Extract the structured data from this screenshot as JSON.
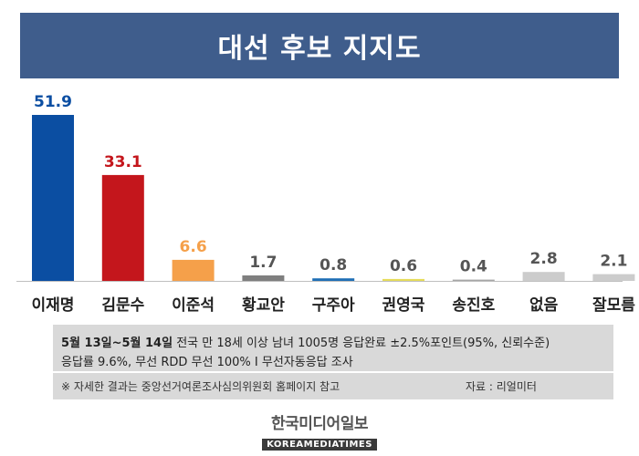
{
  "chart_data": {
    "type": "bar",
    "title": "대선 후보 지지도",
    "categories": [
      "이재명",
      "김문수",
      "이준석",
      "황교안",
      "구주아",
      "권영국",
      "송진호",
      "없음",
      "잘모름"
    ],
    "values": [
      51.9,
      33.1,
      6.6,
      1.7,
      0.8,
      0.6,
      0.4,
      2.8,
      2.1
    ],
    "value_labels": [
      "51.9",
      "33.1",
      "6.6",
      "1.7",
      "0.8",
      "0.6",
      "0.4",
      "2.8",
      "2.1"
    ],
    "bar_colors": [
      "#0b4ea2",
      "#c4161c",
      "#f5a04a",
      "#7f7f7f",
      "#1f6fb5",
      "#e6dc5a",
      "#a6a6a6",
      "#cccccc",
      "#cccccc"
    ],
    "label_colors": [
      "#0b4ea2",
      "#c4161c",
      "#f5a04a",
      "#555555",
      "#555555",
      "#555555",
      "#555555",
      "#555555",
      "#555555"
    ],
    "ylim": [
      0,
      55
    ]
  },
  "survey": {
    "dates": "5월 13일~5월 14일",
    "details": " 전국 만 18세 이상 남녀 1005명 응답완료 ±2.5%포인트(95%, 신뢰수준)",
    "details2": "응답률 9.6%, 무선 RDD 무선 100% I 무선자동응답 조사",
    "note": "※ 자세한 결과는 중앙선거여론조사심의위원회 홈페이지 참고",
    "credit": "자료 : 리얼미터"
  },
  "logo": {
    "korean": "한국미디어일보",
    "english": "KOREAMEDIATIMES"
  }
}
